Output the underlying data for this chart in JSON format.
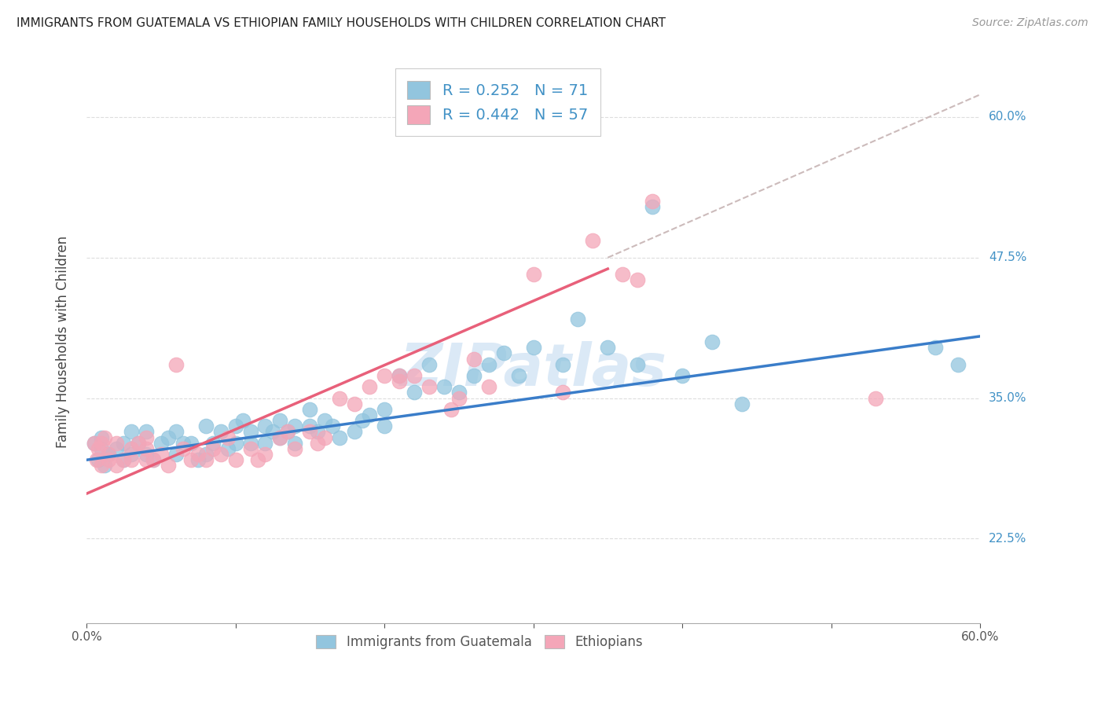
{
  "title": "IMMIGRANTS FROM GUATEMALA VS ETHIOPIAN FAMILY HOUSEHOLDS WITH CHILDREN CORRELATION CHART",
  "source": "Source: ZipAtlas.com",
  "ylabel": "Family Households with Children",
  "ytick_labels": [
    "22.5%",
    "35.0%",
    "47.5%",
    "60.0%"
  ],
  "ytick_values": [
    0.225,
    0.35,
    0.475,
    0.6
  ],
  "xmin": 0.0,
  "xmax": 0.6,
  "ymin": 0.15,
  "ymax": 0.65,
  "legend_blue_r": "R = 0.252",
  "legend_blue_n": "N = 71",
  "legend_pink_r": "R = 0.442",
  "legend_pink_n": "N = 57",
  "color_blue": "#92c5de",
  "color_pink": "#f4a6b8",
  "color_blue_line": "#3a7dc9",
  "color_pink_line": "#e8607a",
  "color_dashed": "#ccbbbb",
  "watermark": "ZIPatlas",
  "blue_scatter_x": [
    0.005,
    0.008,
    0.01,
    0.01,
    0.012,
    0.015,
    0.02,
    0.025,
    0.025,
    0.03,
    0.03,
    0.035,
    0.04,
    0.04,
    0.045,
    0.05,
    0.055,
    0.06,
    0.06,
    0.065,
    0.07,
    0.075,
    0.08,
    0.08,
    0.085,
    0.09,
    0.095,
    0.1,
    0.1,
    0.105,
    0.11,
    0.11,
    0.12,
    0.12,
    0.125,
    0.13,
    0.13,
    0.135,
    0.14,
    0.14,
    0.15,
    0.15,
    0.155,
    0.16,
    0.165,
    0.17,
    0.18,
    0.185,
    0.19,
    0.2,
    0.2,
    0.21,
    0.22,
    0.23,
    0.24,
    0.25,
    0.26,
    0.27,
    0.28,
    0.29,
    0.3,
    0.32,
    0.33,
    0.35,
    0.37,
    0.38,
    0.4,
    0.42,
    0.44,
    0.57,
    0.585
  ],
  "blue_scatter_y": [
    0.31,
    0.295,
    0.305,
    0.315,
    0.29,
    0.3,
    0.305,
    0.295,
    0.31,
    0.3,
    0.32,
    0.31,
    0.32,
    0.3,
    0.295,
    0.31,
    0.315,
    0.3,
    0.32,
    0.31,
    0.31,
    0.295,
    0.325,
    0.3,
    0.31,
    0.32,
    0.305,
    0.325,
    0.31,
    0.33,
    0.31,
    0.32,
    0.325,
    0.31,
    0.32,
    0.315,
    0.33,
    0.32,
    0.325,
    0.31,
    0.325,
    0.34,
    0.32,
    0.33,
    0.325,
    0.315,
    0.32,
    0.33,
    0.335,
    0.325,
    0.34,
    0.37,
    0.355,
    0.38,
    0.36,
    0.355,
    0.37,
    0.38,
    0.39,
    0.37,
    0.395,
    0.38,
    0.42,
    0.395,
    0.38,
    0.52,
    0.37,
    0.4,
    0.345,
    0.395,
    0.38
  ],
  "pink_scatter_x": [
    0.005,
    0.007,
    0.008,
    0.01,
    0.01,
    0.012,
    0.015,
    0.015,
    0.02,
    0.02,
    0.025,
    0.03,
    0.03,
    0.035,
    0.04,
    0.04,
    0.04,
    0.045,
    0.05,
    0.055,
    0.06,
    0.065,
    0.07,
    0.075,
    0.08,
    0.085,
    0.09,
    0.095,
    0.1,
    0.11,
    0.115,
    0.12,
    0.13,
    0.135,
    0.14,
    0.15,
    0.155,
    0.16,
    0.17,
    0.18,
    0.19,
    0.2,
    0.21,
    0.21,
    0.22,
    0.23,
    0.245,
    0.25,
    0.26,
    0.27,
    0.3,
    0.32,
    0.34,
    0.36,
    0.37,
    0.38,
    0.53
  ],
  "pink_scatter_y": [
    0.31,
    0.295,
    0.305,
    0.29,
    0.31,
    0.315,
    0.3,
    0.295,
    0.29,
    0.31,
    0.295,
    0.305,
    0.295,
    0.31,
    0.295,
    0.305,
    0.315,
    0.295,
    0.3,
    0.29,
    0.38,
    0.305,
    0.295,
    0.3,
    0.295,
    0.305,
    0.3,
    0.315,
    0.295,
    0.305,
    0.295,
    0.3,
    0.315,
    0.32,
    0.305,
    0.32,
    0.31,
    0.315,
    0.35,
    0.345,
    0.36,
    0.37,
    0.365,
    0.37,
    0.37,
    0.36,
    0.34,
    0.35,
    0.385,
    0.36,
    0.46,
    0.355,
    0.49,
    0.46,
    0.455,
    0.525,
    0.35
  ],
  "blue_line_x": [
    0.0,
    0.6
  ],
  "blue_line_y": [
    0.295,
    0.405
  ],
  "pink_line_x": [
    0.0,
    0.35
  ],
  "pink_line_y": [
    0.265,
    0.465
  ],
  "dash_line_x": [
    0.35,
    0.6
  ],
  "dash_line_y": [
    0.475,
    0.62
  ]
}
